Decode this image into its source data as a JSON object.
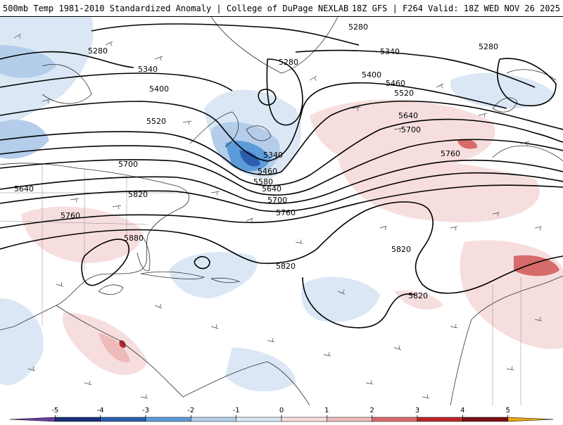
{
  "header": {
    "left_title": "500mb Temp 1981-2010 Standardized Anomaly | College of DuPage NEXLAB",
    "right_title": "18Z GFS | F264 Valid: 18Z WED NOV 26 2025"
  },
  "colors": {
    "cold_1": "#dbe7f5",
    "cold_2": "#b3cdea",
    "cold_3": "#5c9bd9",
    "cold_4": "#2b5fae",
    "cold_5": "#1a2f7a",
    "warm_1": "#f7dede",
    "warm_2": "#eebaba",
    "warm_3": "#d76a6a",
    "warm_4": "#b8262b",
    "warm_5": "#7a0f14",
    "land_outline": "#333333",
    "contour": "#000000"
  },
  "contour_labels": [
    {
      "id": "lbl-5280-a",
      "text": "5280"
    },
    {
      "id": "lbl-5280-b",
      "text": "5280"
    },
    {
      "id": "lbl-5280-c",
      "text": "5280"
    },
    {
      "id": "lbl-5280-d",
      "text": "5280"
    },
    {
      "id": "lbl-5340-a",
      "text": "5340"
    },
    {
      "id": "lbl-5340-b",
      "text": "5340"
    },
    {
      "id": "lbl-5340-c",
      "text": "5340"
    },
    {
      "id": "lbl-5400-a",
      "text": "5400"
    },
    {
      "id": "lbl-5400-b",
      "text": "5400"
    },
    {
      "id": "lbl-5460-a",
      "text": "5460"
    },
    {
      "id": "lbl-5460-b",
      "text": "5460"
    },
    {
      "id": "lbl-5520-a",
      "text": "5520"
    },
    {
      "id": "lbl-5520-b",
      "text": "5520"
    },
    {
      "id": "lbl-5580",
      "text": "5580"
    },
    {
      "id": "lbl-5640-a",
      "text": "5640"
    },
    {
      "id": "lbl-5640-b",
      "text": "5640"
    },
    {
      "id": "lbl-5640-c",
      "text": "5640"
    },
    {
      "id": "lbl-5700-a",
      "text": "5700"
    },
    {
      "id": "lbl-5700-b",
      "text": "5700"
    },
    {
      "id": "lbl-5700-c",
      "text": "5700"
    },
    {
      "id": "lbl-5760-a",
      "text": "5760"
    },
    {
      "id": "lbl-5760-b",
      "text": "5760"
    },
    {
      "id": "lbl-5760-c",
      "text": "5760"
    },
    {
      "id": "lbl-5820-a",
      "text": "5820"
    },
    {
      "id": "lbl-5820-b",
      "text": "5820"
    },
    {
      "id": "lbl-5820-c",
      "text": "5820"
    },
    {
      "id": "lbl-5820-d",
      "text": "5820"
    },
    {
      "id": "lbl-5880",
      "text": "5880"
    }
  ],
  "colorbar": {
    "ticks": [
      "-5",
      "-4",
      "-3",
      "-2",
      "-1",
      "0",
      "1",
      "2",
      "3",
      "4",
      "5"
    ],
    "range": [
      -6,
      6
    ],
    "bins": [
      {
        "from": -6,
        "to": -5,
        "color": "#6a3fa0"
      },
      {
        "from": -5,
        "to": -4,
        "color": "#1a2f7a"
      },
      {
        "from": -4,
        "to": -3,
        "color": "#2b5fae"
      },
      {
        "from": -3,
        "to": -2,
        "color": "#5c9bd9"
      },
      {
        "from": -2,
        "to": -1,
        "color": "#b3cdea"
      },
      {
        "from": -1,
        "to": 0,
        "color": "#dbe7f5"
      },
      {
        "from": 0,
        "to": 1,
        "color": "#f7dede"
      },
      {
        "from": 1,
        "to": 2,
        "color": "#eebaba"
      },
      {
        "from": 2,
        "to": 3,
        "color": "#d76a6a"
      },
      {
        "from": 3,
        "to": 4,
        "color": "#b8262b"
      },
      {
        "from": 4,
        "to": 5,
        "color": "#7a0f14"
      },
      {
        "from": 5,
        "to": 6,
        "color": "#e6a817"
      }
    ]
  }
}
